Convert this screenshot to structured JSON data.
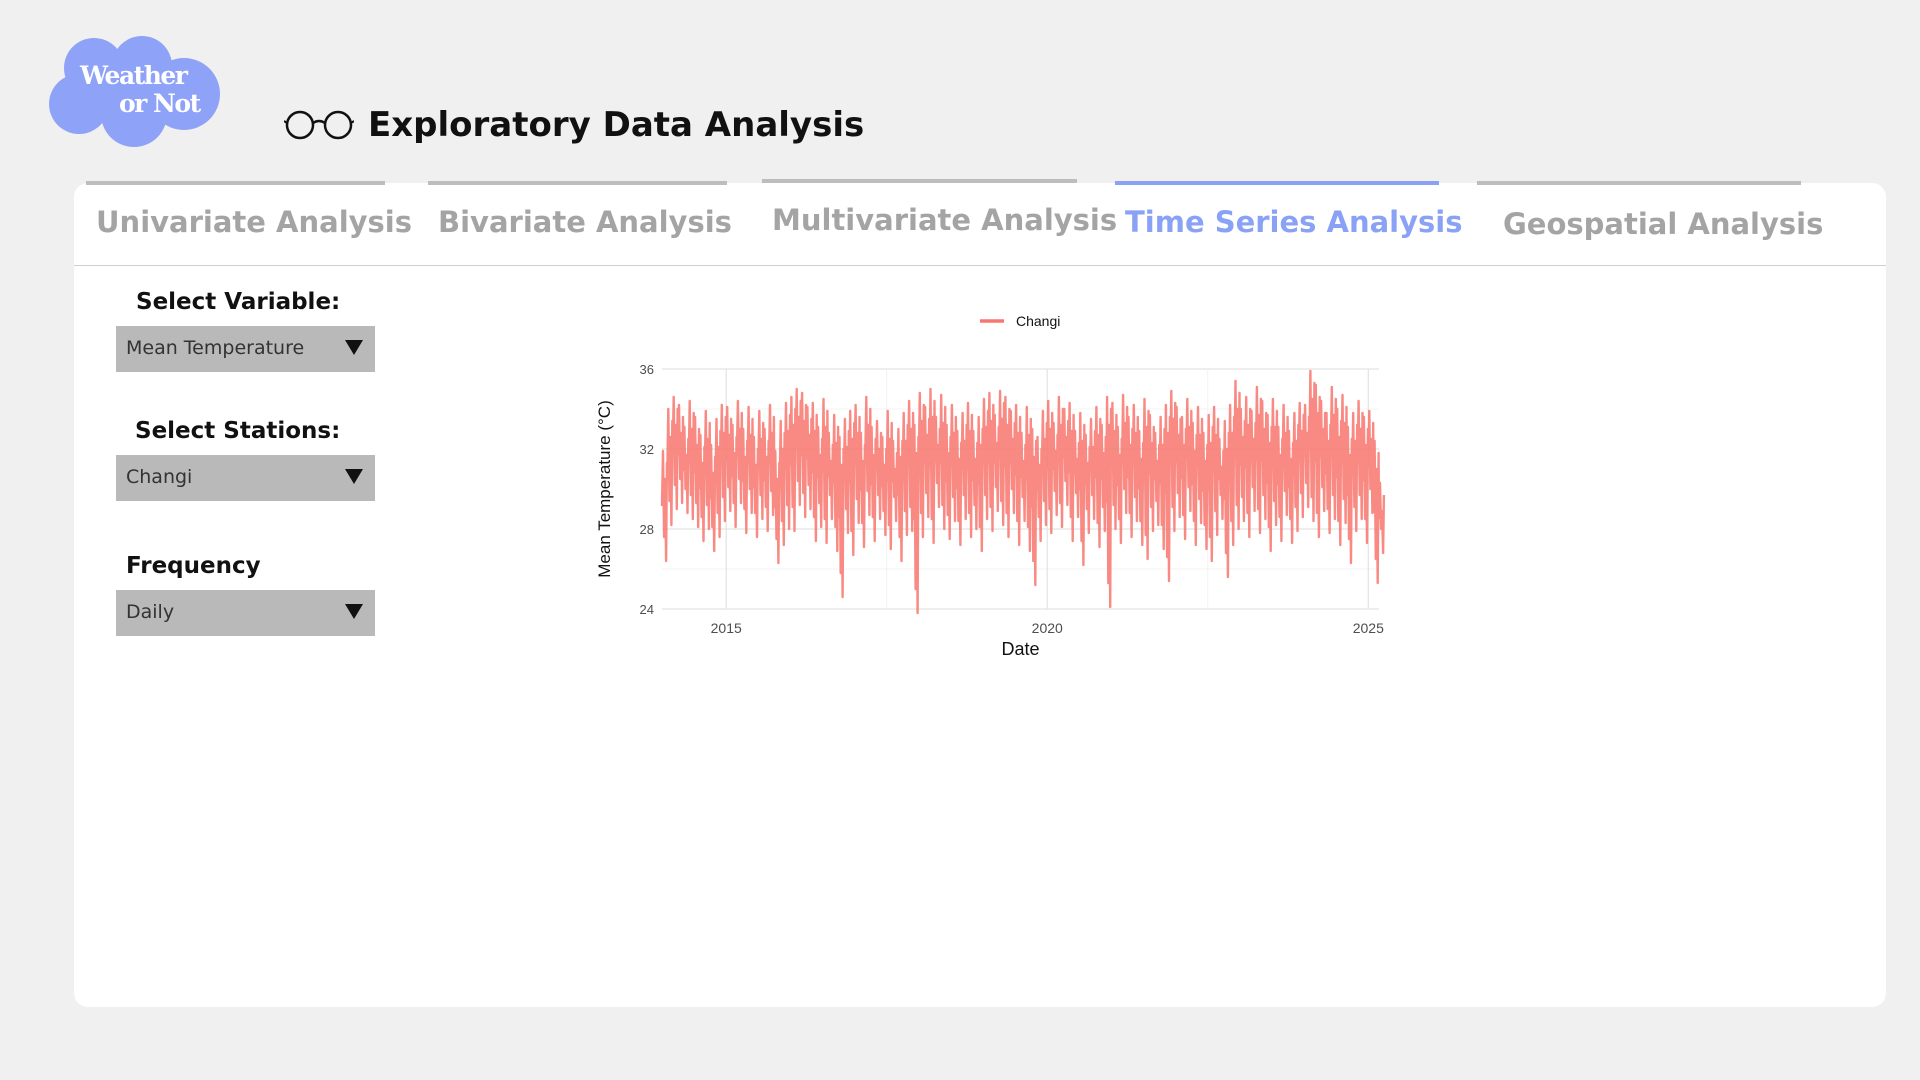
{
  "logo": {
    "line1": "Weather",
    "line2": "or Not",
    "color": "#8ea2f7"
  },
  "header": {
    "title": "Exploratory Data Analysis",
    "icon": "glasses-icon"
  },
  "tabs": [
    {
      "label": "Univariate Analysis",
      "active": false
    },
    {
      "label": "Bivariate Analysis",
      "active": false
    },
    {
      "label": "Multivariate Analysis",
      "active": false
    },
    {
      "label": "Time Series Analysis",
      "active": true
    },
    {
      "label": "Geospatial Analysis",
      "active": false
    }
  ],
  "controls": {
    "variable": {
      "label": "Select Variable:",
      "value": "Mean Temperature"
    },
    "stations": {
      "label": "Select Stations:",
      "value": "Changi"
    },
    "frequency": {
      "label": "Frequency",
      "value": "Daily"
    }
  },
  "colors": {
    "accent": "#8aa2f5",
    "series": "#f8766d"
  },
  "chart_data": {
    "type": "line",
    "xlabel": "Date",
    "ylabel": "Mean Temperature (°C)",
    "x_ticks": [
      "2015",
      "2020",
      "2025"
    ],
    "y_ticks": [
      "24",
      "28",
      "32",
      "36"
    ],
    "xlim": [
      "2014-01",
      "2025-03"
    ],
    "ylim": [
      24,
      36
    ],
    "grid": true,
    "legend_position": "top",
    "series": [
      {
        "name": "Changi",
        "x": [
          "2014-01",
          "2014-02",
          "2014-03",
          "2014-04",
          "2014-05",
          "2014-06",
          "2014-07",
          "2014-08",
          "2014-09",
          "2014-10",
          "2014-11",
          "2014-12",
          "2015-01",
          "2015-02",
          "2015-03",
          "2015-04",
          "2015-05",
          "2015-06",
          "2015-07",
          "2015-08",
          "2015-09",
          "2015-10",
          "2015-11",
          "2015-12",
          "2016-01",
          "2016-02",
          "2016-03",
          "2016-04",
          "2016-05",
          "2016-06",
          "2016-07",
          "2016-08",
          "2016-09",
          "2016-10",
          "2016-11",
          "2016-12",
          "2017-01",
          "2017-02",
          "2017-03",
          "2017-04",
          "2017-05",
          "2017-06",
          "2017-07",
          "2017-08",
          "2017-09",
          "2017-10",
          "2017-11",
          "2017-12",
          "2018-01",
          "2018-02",
          "2018-03",
          "2018-04",
          "2018-05",
          "2018-06",
          "2018-07",
          "2018-08",
          "2018-09",
          "2018-10",
          "2018-11",
          "2018-12",
          "2019-01",
          "2019-02",
          "2019-03",
          "2019-04",
          "2019-05",
          "2019-06",
          "2019-07",
          "2019-08",
          "2019-09",
          "2019-10",
          "2019-11",
          "2019-12",
          "2020-01",
          "2020-02",
          "2020-03",
          "2020-04",
          "2020-05",
          "2020-06",
          "2020-07",
          "2020-08",
          "2020-09",
          "2020-10",
          "2020-11",
          "2020-12",
          "2021-01",
          "2021-02",
          "2021-03",
          "2021-04",
          "2021-05",
          "2021-06",
          "2021-07",
          "2021-08",
          "2021-09",
          "2021-10",
          "2021-11",
          "2021-12",
          "2022-01",
          "2022-02",
          "2022-03",
          "2022-04",
          "2022-05",
          "2022-06",
          "2022-07",
          "2022-08",
          "2022-09",
          "2022-10",
          "2022-11",
          "2022-12",
          "2023-01",
          "2023-02",
          "2023-03",
          "2023-04",
          "2023-05",
          "2023-06",
          "2023-07",
          "2023-08",
          "2023-09",
          "2023-10",
          "2023-11",
          "2023-12",
          "2024-01",
          "2024-02",
          "2024-03",
          "2024-04",
          "2024-05",
          "2024-06",
          "2024-07",
          "2024-08",
          "2024-09",
          "2024-10",
          "2024-11",
          "2024-12",
          "2025-01",
          "2025-02",
          "2025-03"
        ],
        "low": [
          26.4,
          28.2,
          29.0,
          29.3,
          28.8,
          28.5,
          28.1,
          27.4,
          28.0,
          26.9,
          27.6,
          28.4,
          28.9,
          28.1,
          29.3,
          27.8,
          28.8,
          27.6,
          28.5,
          27.9,
          28.7,
          26.3,
          27.2,
          28.0,
          27.9,
          29.2,
          28.6,
          29.0,
          27.4,
          28.1,
          27.3,
          28.5,
          26.9,
          24.6,
          27.8,
          26.7,
          28.3,
          27.1,
          28.7,
          27.4,
          28.5,
          27.7,
          27.0,
          28.4,
          26.4,
          27.7,
          27.9,
          23.8,
          27.6,
          28.6,
          27.3,
          29.1,
          28.0,
          27.5,
          28.4,
          27.2,
          28.5,
          27.6,
          28.0,
          26.9,
          28.5,
          27.9,
          28.9,
          28.2,
          27.6,
          28.8,
          27.2,
          28.4,
          26.9,
          25.2,
          27.4,
          28.2,
          27.8,
          28.7,
          28.1,
          29.2,
          27.4,
          28.6,
          26.2,
          27.8,
          28.5,
          27.1,
          27.9,
          24.1,
          28.0,
          27.3,
          28.8,
          27.6,
          28.4,
          27.2,
          26.5,
          27.9,
          28.2,
          27.0,
          25.4,
          27.9,
          28.6,
          27.5,
          28.9,
          27.2,
          28.3,
          27.0,
          26.4,
          27.7,
          28.5,
          25.6,
          27.2,
          28.0,
          28.4,
          27.6,
          28.9,
          27.8,
          28.5,
          26.9,
          28.2,
          27.4,
          28.7,
          27.3,
          27.9,
          28.6,
          29.1,
          28.4,
          27.6,
          28.9,
          27.8,
          28.5,
          27.2,
          28.3,
          26.3,
          27.9,
          28.5,
          27.3,
          28.8,
          25.3,
          26.8
        ],
        "high": [
          31.9,
          34.0,
          34.6,
          34.2,
          33.1,
          34.4,
          33.6,
          32.7,
          33.9,
          32.2,
          33.5,
          34.2,
          34.1,
          33.2,
          34.4,
          33.0,
          34.1,
          32.6,
          33.9,
          33.0,
          34.2,
          31.9,
          33.4,
          34.3,
          34.6,
          35.0,
          34.8,
          34.1,
          34.3,
          33.1,
          34.5,
          32.8,
          33.7,
          32.6,
          33.5,
          33.9,
          34.2,
          32.8,
          34.6,
          33.1,
          33.4,
          32.6,
          33.9,
          32.4,
          33.0,
          33.8,
          34.4,
          33.2,
          34.8,
          34.1,
          35.0,
          33.6,
          34.7,
          33.2,
          34.2,
          32.9,
          33.8,
          34.3,
          32.9,
          33.6,
          34.5,
          34.8,
          33.7,
          34.9,
          34.6,
          33.9,
          34.2,
          32.8,
          34.1,
          33.0,
          32.6,
          33.9,
          34.4,
          33.3,
          34.6,
          34.0,
          34.3,
          32.9,
          33.8,
          32.7,
          33.5,
          34.1,
          33.2,
          34.6,
          34.3,
          33.1,
          34.7,
          33.6,
          34.2,
          32.9,
          34.5,
          33.7,
          32.8,
          33.6,
          34.2,
          34.9,
          34.1,
          33.6,
          34.5,
          33.3,
          34.1,
          32.8,
          33.7,
          34.1,
          32.5,
          33.4,
          34.2,
          35.4,
          34.0,
          34.6,
          33.9,
          35.1,
          34.4,
          33.7,
          34.5,
          33.1,
          34.2,
          32.9,
          33.8,
          34.3,
          34.2,
          35.9,
          35.2,
          34.4,
          33.8,
          35.1,
          34.0,
          34.7,
          33.1,
          33.8,
          34.4,
          33.6,
          33.9,
          32.4,
          30.3
        ]
      }
    ]
  }
}
